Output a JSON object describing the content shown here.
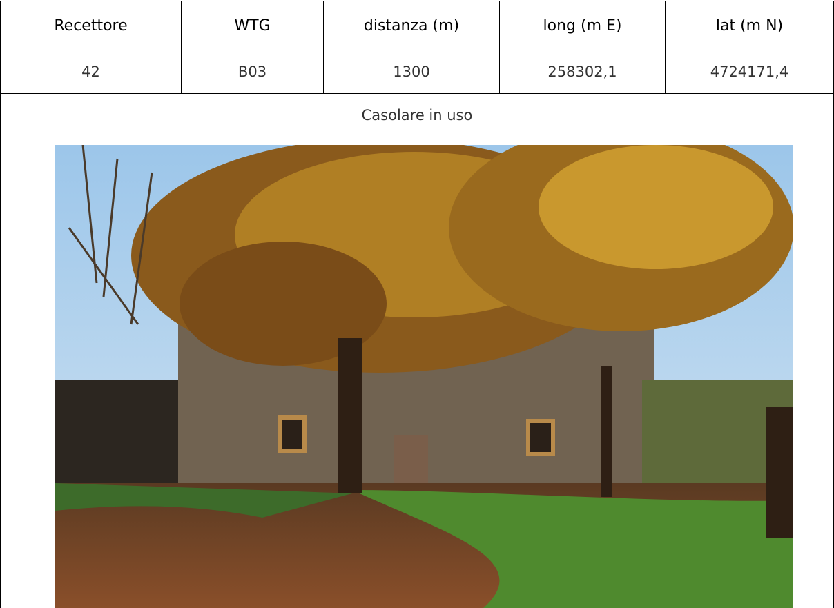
{
  "table": {
    "header": [
      "Recettore",
      "WTG",
      "distanza (m)",
      "long (m E)",
      "lat (m N)"
    ],
    "rows": [
      [
        "42",
        "B03",
        "1300",
        "258302,1",
        "4724171,4"
      ]
    ],
    "description": "Casolare in uso"
  }
}
